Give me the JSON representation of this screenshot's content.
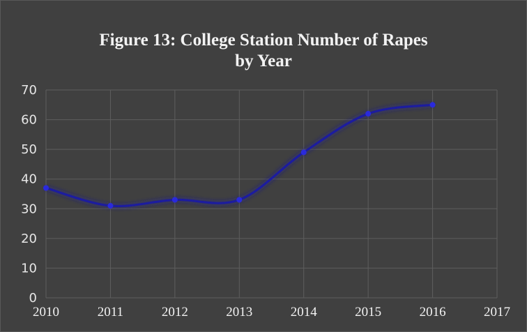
{
  "chart_data": {
    "type": "line",
    "title_lines": [
      "Figure 13: College Station Number of Rapes",
      "by Year"
    ],
    "xlabel": "",
    "ylabel": "",
    "x_ticks": [
      "2010",
      "2011",
      "2012",
      "2013",
      "2014",
      "2015",
      "2016",
      "2017"
    ],
    "y_ticks": [
      "0",
      "10",
      "20",
      "30",
      "40",
      "50",
      "60",
      "70"
    ],
    "ylim": [
      0,
      70
    ],
    "grid": true,
    "legend": "none",
    "series": [
      {
        "x": [
          2010,
          2011,
          2012,
          2013,
          2014,
          2015,
          2016
        ],
        "values": [
          37,
          31,
          33,
          33,
          49,
          62,
          65
        ],
        "color": "#1a1aa0"
      }
    ],
    "colors": {
      "background": "#404040",
      "grid": "#5e5e5e",
      "text": "#f2f2f2"
    }
  }
}
